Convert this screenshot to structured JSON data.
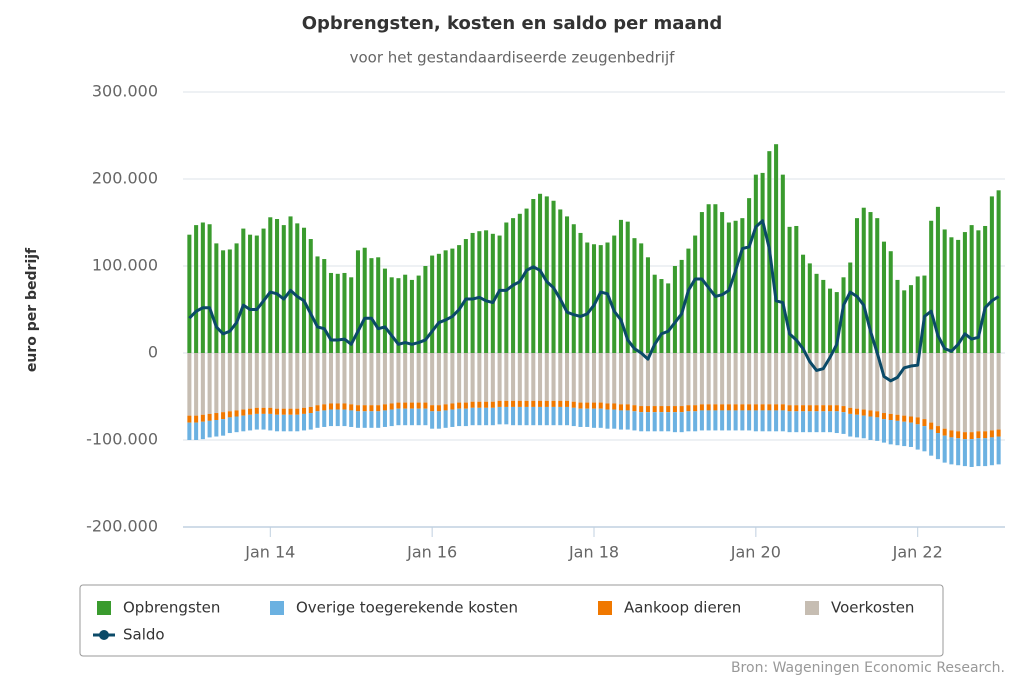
{
  "chart_data": {
    "type": "bar",
    "title": "Opbrengsten, kosten en saldo per maand",
    "subtitle": "voor het gestandaardiseerde zeugenbedrijf",
    "y_label": "euro per bedrijf",
    "source": "Bron: Wageningen Economic Research.",
    "categories": [
      null,
      null,
      null,
      null,
      null,
      null,
      null,
      null,
      null,
      null,
      null,
      null,
      "Jan 14",
      null,
      null,
      null,
      null,
      null,
      null,
      null,
      null,
      null,
      null,
      null,
      null,
      null,
      null,
      null,
      null,
      null,
      null,
      null,
      null,
      null,
      null,
      null,
      "Jan 16",
      null,
      null,
      null,
      null,
      null,
      null,
      null,
      null,
      null,
      null,
      null,
      null,
      null,
      null,
      null,
      null,
      null,
      null,
      null,
      null,
      null,
      null,
      null,
      "Jan 18",
      null,
      null,
      null,
      null,
      null,
      null,
      null,
      null,
      null,
      null,
      null,
      null,
      null,
      null,
      null,
      null,
      null,
      null,
      null,
      null,
      null,
      null,
      null,
      "Jan 20",
      null,
      null,
      null,
      null,
      null,
      null,
      null,
      null,
      null,
      null,
      null,
      null,
      null,
      null,
      null,
      null,
      null,
      null,
      null,
      null,
      null,
      null,
      null,
      "Jan 22",
      null,
      null,
      null,
      null,
      null,
      null,
      null,
      null,
      null,
      null,
      null,
      null
    ],
    "ylim": [
      -200000,
      300000
    ],
    "yticks": [
      {
        "value": -200000,
        "label": "-200.000"
      },
      {
        "value": -100000,
        "label": "-100.000"
      },
      0,
      {
        "value": 100000,
        "label": "100.000"
      },
      {
        "value": 200000,
        "label": "200.000"
      },
      {
        "value": 300000,
        "label": "300.000"
      }
    ],
    "grid": true,
    "legend": "bottom",
    "series": [
      {
        "name": "Opbrengsten",
        "type": "bar",
        "color": "#3a9b2e",
        "values": [
          136000,
          147000,
          150000,
          148000,
          126000,
          118000,
          119000,
          126000,
          143000,
          136000,
          135000,
          143000,
          156000,
          154000,
          147000,
          157000,
          149000,
          144000,
          131000,
          111000,
          108000,
          92000,
          91000,
          92000,
          87000,
          118000,
          121000,
          109000,
          110000,
          97000,
          87000,
          86000,
          90000,
          84000,
          89000,
          100000,
          112000,
          114000,
          118000,
          120000,
          124000,
          131000,
          138000,
          140000,
          141000,
          137000,
          135000,
          150000,
          155000,
          160000,
          166000,
          177000,
          183000,
          180000,
          175000,
          165000,
          157000,
          148000,
          138000,
          127000,
          125000,
          124000,
          127000,
          135000,
          153000,
          151000,
          132000,
          126000,
          110000,
          90000,
          85000,
          80000,
          100000,
          107000,
          120000,
          135000,
          162000,
          171000,
          171000,
          162000,
          150000,
          152000,
          155000,
          178000,
          205000,
          207000,
          232000,
          240000,
          205000,
          145000,
          146000,
          113000,
          103000,
          91000,
          84000,
          74000,
          70000,
          87000,
          104000,
          155000,
          167000,
          162000,
          155000,
          128000,
          117000,
          84000,
          72000,
          78000,
          88000,
          89000,
          152000,
          168000,
          142000,
          133000,
          130000,
          139000,
          147000,
          141000,
          146000,
          180000,
          187000
        ]
      },
      {
        "name": "Overige toegerekende kosten",
        "type": "bar",
        "color": "#6bb1e1",
        "values": [
          -20000,
          -20000,
          -20000,
          -19000,
          -19000,
          -19000,
          -18000,
          -18000,
          -18000,
          -18000,
          -18000,
          -18000,
          -19000,
          -19000,
          -19000,
          -19000,
          -19000,
          -19000,
          -19000,
          -19000,
          -19000,
          -19000,
          -19000,
          -19000,
          -19000,
          -19000,
          -19000,
          -19000,
          -19000,
          -19000,
          -19000,
          -19000,
          -19000,
          -19000,
          -19000,
          -19000,
          -20000,
          -20000,
          -20000,
          -20000,
          -20000,
          -20000,
          -20000,
          -20000,
          -20000,
          -20000,
          -20000,
          -20000,
          -21000,
          -21000,
          -21000,
          -21000,
          -21000,
          -21000,
          -21000,
          -21000,
          -21000,
          -21000,
          -21000,
          -21000,
          -22000,
          -22000,
          -22000,
          -22000,
          -22000,
          -22000,
          -22000,
          -22000,
          -22000,
          -22000,
          -22000,
          -22000,
          -23000,
          -23000,
          -23000,
          -23000,
          -23000,
          -23000,
          -23000,
          -23000,
          -23000,
          -23000,
          -23000,
          -23000,
          -24000,
          -24000,
          -24000,
          -24000,
          -24000,
          -24000,
          -24000,
          -24000,
          -24000,
          -24000,
          -24000,
          -24000,
          -25000,
          -25000,
          -26000,
          -26000,
          -26000,
          -27000,
          -27000,
          -27000,
          -28000,
          -28000,
          -28000,
          -28000,
          -29000,
          -29000,
          -30000,
          -30000,
          -31000,
          -31000,
          -31000,
          -31000,
          -32000,
          -32000,
          -32000,
          -32000,
          -32000
        ]
      },
      {
        "name": "Aankoop dieren",
        "type": "bar",
        "color": "#f07800",
        "values": [
          -8000,
          -8000,
          -8000,
          -8000,
          -8000,
          -8000,
          -7000,
          -7000,
          -7000,
          -7000,
          -7000,
          -7000,
          -7000,
          -7000,
          -7000,
          -7000,
          -7000,
          -7000,
          -7000,
          -7000,
          -7000,
          -7000,
          -7000,
          -7000,
          -7000,
          -7000,
          -7000,
          -7000,
          -7000,
          -7000,
          -7000,
          -7000,
          -7000,
          -7000,
          -7000,
          -7000,
          -7000,
          -7000,
          -7000,
          -7000,
          -7000,
          -7000,
          -7000,
          -7000,
          -7000,
          -7000,
          -7000,
          -7000,
          -7000,
          -7000,
          -7000,
          -7000,
          -7000,
          -7000,
          -7000,
          -7000,
          -7000,
          -7000,
          -7000,
          -7000,
          -7000,
          -7000,
          -7000,
          -7000,
          -7000,
          -7000,
          -7000,
          -7000,
          -7000,
          -7000,
          -7000,
          -7000,
          -7000,
          -7000,
          -7000,
          -7000,
          -7000,
          -7000,
          -7000,
          -7000,
          -7000,
          -7000,
          -7000,
          -7000,
          -7000,
          -7000,
          -7000,
          -7000,
          -7000,
          -7000,
          -7000,
          -7000,
          -7000,
          -7000,
          -7000,
          -7000,
          -7000,
          -7000,
          -7000,
          -7000,
          -7000,
          -7000,
          -7000,
          -7000,
          -7000,
          -7000,
          -7000,
          -7000,
          -8000,
          -8000,
          -8000,
          -8000,
          -8000,
          -8000,
          -8000,
          -8000,
          -8000,
          -8000,
          -8000,
          -8000,
          -8000
        ]
      },
      {
        "name": "Voerkosten",
        "type": "bar",
        "color": "#c6bdb2",
        "values": [
          -72000,
          -72000,
          -71000,
          -70000,
          -69000,
          -68000,
          -67000,
          -66000,
          -65000,
          -64000,
          -63000,
          -63000,
          -63000,
          -64000,
          -64000,
          -64000,
          -64000,
          -63000,
          -62000,
          -60000,
          -59000,
          -58000,
          -58000,
          -58000,
          -59000,
          -60000,
          -60000,
          -60000,
          -60000,
          -59000,
          -58000,
          -57000,
          -57000,
          -57000,
          -57000,
          -57000,
          -60000,
          -60000,
          -59000,
          -58000,
          -57000,
          -57000,
          -56000,
          -56000,
          -56000,
          -56000,
          -55000,
          -55000,
          -55000,
          -55000,
          -55000,
          -55000,
          -55000,
          -55000,
          -55000,
          -55000,
          -55000,
          -56000,
          -57000,
          -57000,
          -57000,
          -57000,
          -58000,
          -58000,
          -59000,
          -59000,
          -60000,
          -61000,
          -61000,
          -61000,
          -61000,
          -61000,
          -61000,
          -61000,
          -60000,
          -60000,
          -59000,
          -59000,
          -59000,
          -59000,
          -59000,
          -59000,
          -59000,
          -59000,
          -59000,
          -59000,
          -59000,
          -59000,
          -59000,
          -60000,
          -60000,
          -60000,
          -60000,
          -60000,
          -60000,
          -60000,
          -60000,
          -61000,
          -63000,
          -64000,
          -65000,
          -66000,
          -67000,
          -69000,
          -70000,
          -71000,
          -72000,
          -73000,
          -74000,
          -76000,
          -80000,
          -84000,
          -87000,
          -89000,
          -90000,
          -91000,
          -91000,
          -90000,
          -90000,
          -89000,
          -88000
        ]
      },
      {
        "name": "Saldo",
        "type": "line",
        "color": "#0b4a68",
        "values": [
          40000,
          48000,
          52000,
          52000,
          30000,
          22000,
          25000,
          35000,
          55000,
          50000,
          50000,
          60000,
          70000,
          68000,
          62000,
          72000,
          65000,
          60000,
          45000,
          30000,
          28000,
          15000,
          15000,
          16000,
          10000,
          25000,
          40000,
          40000,
          28000,
          30000,
          20000,
          10000,
          12000,
          10000,
          12000,
          15000,
          25000,
          35000,
          38000,
          42000,
          50000,
          62000,
          62000,
          64000,
          60000,
          58000,
          72000,
          72000,
          78000,
          82000,
          95000,
          99000,
          95000,
          82000,
          75000,
          62000,
          47000,
          44000,
          42000,
          45000,
          55000,
          70000,
          68000,
          48000,
          38000,
          15000,
          5000,
          0,
          -7000,
          10000,
          22000,
          25000,
          35000,
          45000,
          72000,
          85000,
          85000,
          75000,
          65000,
          67000,
          72000,
          95000,
          120000,
          122000,
          145000,
          152000,
          120000,
          60000,
          58000,
          22000,
          15000,
          5000,
          -10000,
          -20000,
          -18000,
          -5000,
          10000,
          55000,
          70000,
          65000,
          55000,
          25000,
          0,
          -27000,
          -32000,
          -28000,
          -17000,
          -15000,
          -14000,
          42000,
          48000,
          20000,
          5000,
          2000,
          10000,
          22000,
          16000,
          18000,
          52000,
          60000,
          65000
        ]
      }
    ]
  }
}
